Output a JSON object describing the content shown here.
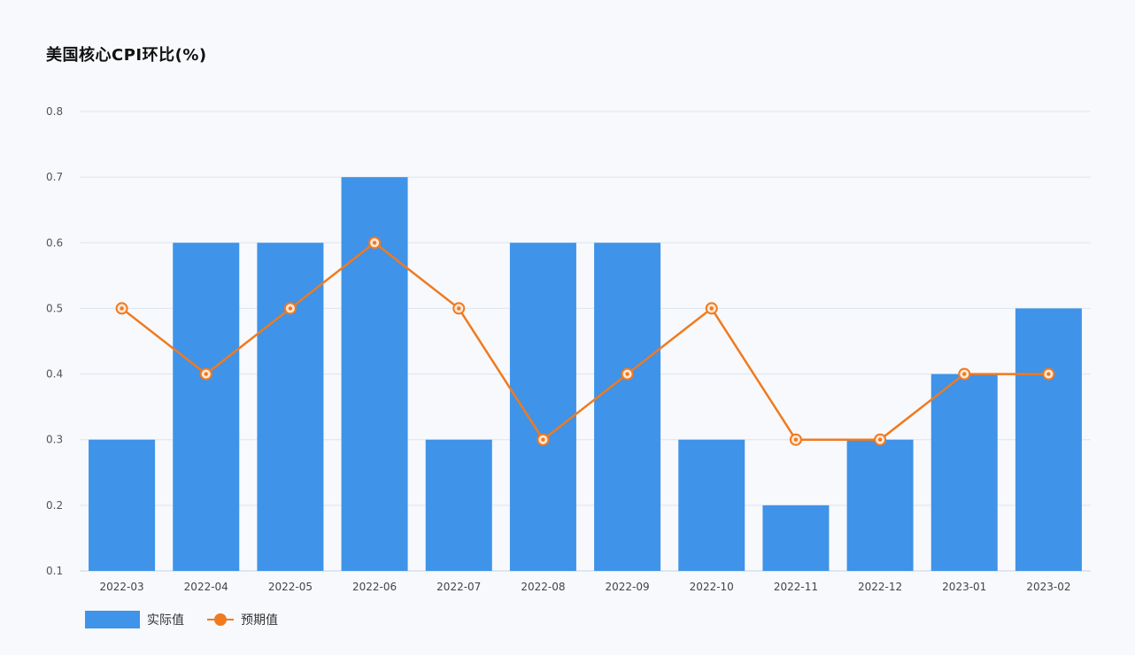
{
  "title": "美国核心CPI环比(%)",
  "chart_data": {
    "type": "bar",
    "title": "美国核心CPI环比(%)",
    "xlabel": "",
    "ylabel": "",
    "ylim": [
      0.1,
      0.8
    ],
    "y_ticks": [
      "0.8",
      "0.7",
      "0.6",
      "0.5",
      "0.4",
      "0.3",
      "0.2",
      "0.1"
    ],
    "categories": [
      "2022-03",
      "2022-04",
      "2022-05",
      "2022-06",
      "2022-07",
      "2022-08",
      "2022-09",
      "2022-10",
      "2022-11",
      "2022-12",
      "2023-01",
      "2023-02"
    ],
    "series": [
      {
        "name": "实际值",
        "type": "bar",
        "color": "#3f93e8",
        "values": [
          0.3,
          0.6,
          0.6,
          0.7,
          0.3,
          0.6,
          0.6,
          0.3,
          0.2,
          0.3,
          0.4,
          0.5
        ]
      },
      {
        "name": "预期值",
        "type": "line",
        "color": "#f07a1f",
        "values": [
          0.5,
          0.4,
          0.5,
          0.6,
          0.5,
          0.3,
          0.4,
          0.5,
          0.3,
          0.3,
          0.4,
          0.4
        ]
      }
    ],
    "grid": true,
    "legend": "bottom-left"
  }
}
